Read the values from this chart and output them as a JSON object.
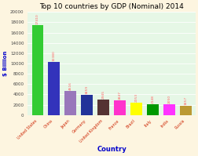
{
  "title": "Top 10 countries by GDP (Nominal) 2014",
  "countries": [
    "United States",
    "China",
    "Japan",
    "Germany",
    "United Kingdom",
    "France",
    "Brazil",
    "Italy",
    "India",
    "Russia"
  ],
  "values": [
    17410,
    10380,
    4616,
    3859,
    2945,
    2847,
    2353,
    2148,
    2050,
    1857
  ],
  "bar_colors": [
    "#33cc33",
    "#3333bb",
    "#9977bb",
    "#223399",
    "#553333",
    "#ff33cc",
    "#ffff00",
    "#009900",
    "#ff33ff",
    "#bb9933"
  ],
  "xlabel": "Country",
  "ylabel": "$ Billion",
  "title_fontsize": 6.5,
  "value_color": "#ff6666",
  "background_color": "#fdf5e0",
  "plot_bg_color": "#e6f7e6",
  "ylim": [
    0,
    20000
  ],
  "yticks": [
    0,
    2000,
    4000,
    6000,
    8000,
    10000,
    12000,
    14000,
    16000,
    18000,
    20000
  ],
  "ylabel_color": "#0000cc",
  "xlabel_color": "#0000cc",
  "xtick_color": "#cc2200"
}
